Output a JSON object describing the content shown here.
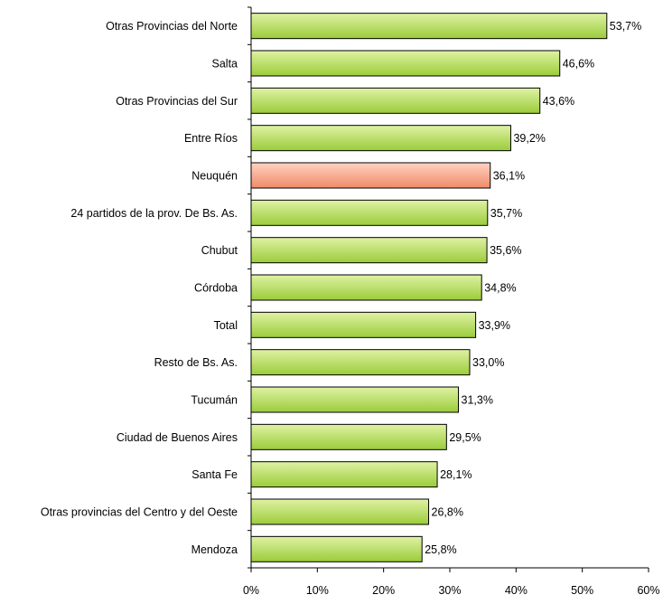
{
  "chart_data": {
    "type": "bar",
    "orientation": "horizontal",
    "categories": [
      "Otras Provincias del Norte",
      "Salta",
      "Otras Provincias del Sur",
      "Entre Ríos",
      "Neuquén",
      "24 partidos de la prov. De Bs. As.",
      "Chubut",
      "Córdoba",
      "Total",
      "Resto de Bs. As.",
      "Tucumán",
      "Ciudad de Buenos Aires",
      "Santa Fe",
      "Otras provincias del Centro y del Oeste",
      "Mendoza"
    ],
    "values": [
      53.7,
      46.6,
      43.6,
      39.2,
      36.1,
      35.7,
      35.6,
      34.8,
      33.9,
      33.0,
      31.3,
      29.5,
      28.1,
      26.8,
      25.8
    ],
    "value_labels": [
      "53,7%",
      "46,6%",
      "43,6%",
      "39,2%",
      "36,1%",
      "35,7%",
      "35,6%",
      "34,8%",
      "33,9%",
      "33,0%",
      "31,3%",
      "29,5%",
      "28,1%",
      "26,8%",
      "25,8%"
    ],
    "xlim": [
      0,
      60
    ],
    "x_ticks": [
      0,
      10,
      20,
      30,
      40,
      50,
      60
    ],
    "x_tick_labels": [
      "0%",
      "10%",
      "20%",
      "30%",
      "40%",
      "50%",
      "60%"
    ],
    "highlight_category": "Neuquén",
    "colors": {
      "bar_fill_light": "#dff2a4",
      "bar_fill_dark": "#9bcc3a",
      "highlight_fill_light": "#ffd2c2",
      "highlight_fill_dark": "#f08a68",
      "bar_stroke": "#000000",
      "axis": "#000000"
    },
    "grid": false,
    "legend": "none"
  }
}
